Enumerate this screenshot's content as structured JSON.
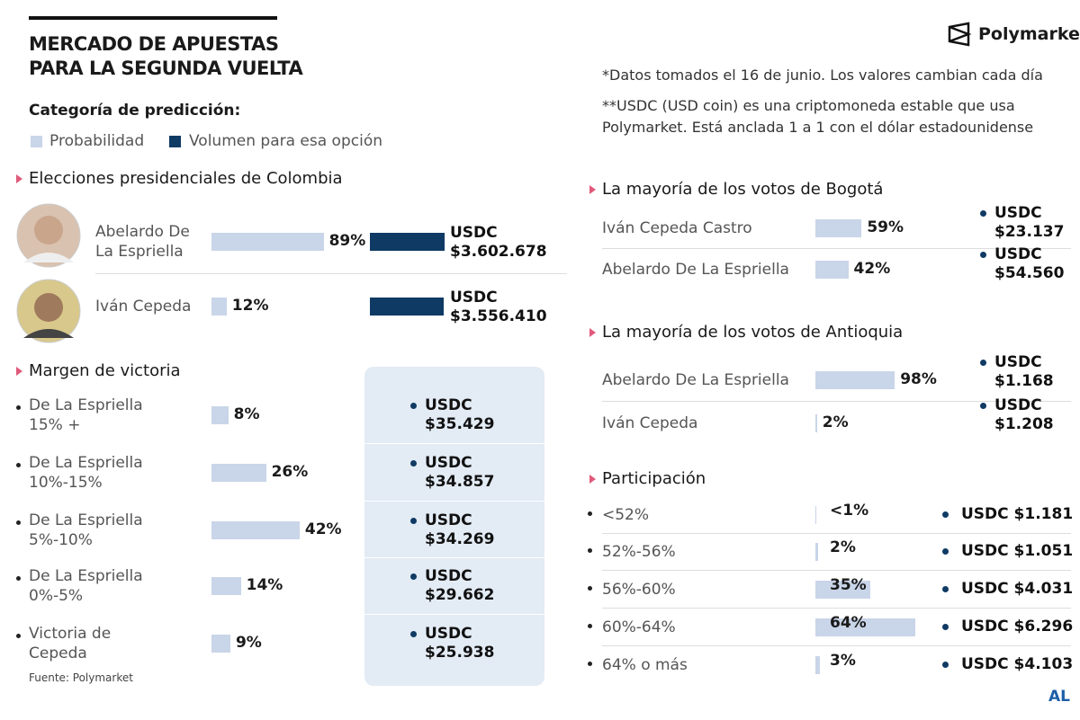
{
  "header": {
    "title": [
      "MERCADO DE APUESTAS",
      "PARA LA SEGUNDA VUELTA"
    ],
    "legend_title": "Categoría de predicción:",
    "legend": [
      "Probabilidad",
      "Volumen para esa opción"
    ],
    "brand": "Polymarket",
    "notes": [
      "*Datos tomados el 16 de junio. Los valores cambian cada día",
      "**USDC (USD coin) es una criptomoneda estable que usa Polymarket. Está anclada 1 a 1 con el dólar estadounidense"
    ]
  },
  "sections": [
    {
      "title": "Elecciones presidenciales de Colombia",
      "items": [
        {
          "name": "Abelardo De La Espriella",
          "probability": 89,
          "probability_label": "89%",
          "volume": 3602678,
          "volume_label": "USDC $3.602.678"
        },
        {
          "name": "Iván Cepeda",
          "probability": 12,
          "probability_label": "12%",
          "volume": 3556410,
          "volume_label": "USDC $3.556.410"
        }
      ]
    },
    {
      "title": "Margen de victoria",
      "items": [
        {
          "name": "De La Espriella 15% +",
          "probability": 8,
          "probability_label": "8%",
          "volume_label": "USDC $35.429"
        },
        {
          "name": "De La Espriella 10%-15%",
          "probability": 26,
          "probability_label": "26%",
          "volume_label": "USDC $34.857"
        },
        {
          "name": "De La Espriella 5%-10%",
          "probability": 42,
          "probability_label": "42%",
          "volume_label": "USDC $34.269"
        },
        {
          "name": "De La Espriella 0%-5%",
          "probability": 14,
          "probability_label": "14%",
          "volume_label": "USDC $29.662"
        },
        {
          "name": "Victoria de Cepeda",
          "probability": 9,
          "probability_label": "9%",
          "volume_label": "USDC $25.938"
        }
      ]
    },
    {
      "title": "La mayoría de los votos de Bogotá",
      "items": [
        {
          "name": "Iván Cepeda Castro",
          "probability": 59,
          "probability_label": "59%",
          "volume_label": "USDC $23.137"
        },
        {
          "name": "Abelardo De La Espriella",
          "probability": 42,
          "probability_label": "42%",
          "volume_label": "USDC $54.560"
        }
      ]
    },
    {
      "title": "La mayoría de los votos de Antioquia",
      "items": [
        {
          "name": "Abelardo De La Espriella",
          "probability": 98,
          "probability_label": "98%",
          "volume_label": "USDC $1.168"
        },
        {
          "name": "Iván Cepeda",
          "probability": 2,
          "probability_label": "2%",
          "volume_label": "USDC $1.208"
        }
      ]
    },
    {
      "title": "Participación",
      "items": [
        {
          "name": "<52%",
          "probability": 0.5,
          "probability_label": "<1%",
          "volume_label": "USDC $1.181"
        },
        {
          "name": "52%-56%",
          "probability": 2,
          "probability_label": "2%",
          "volume_label": "USDC $1.051"
        },
        {
          "name": "56%-60%",
          "probability": 35,
          "probability_label": "35%",
          "volume_label": "USDC $4.031"
        },
        {
          "name": "60%-64%",
          "probability": 64,
          "probability_label": "64%",
          "volume_label": "USDC $6.296"
        },
        {
          "name": "64% o más",
          "probability": 3,
          "probability_label": "3%",
          "volume_label": "USDC $4.103"
        }
      ]
    }
  ],
  "footer": {
    "source": "Fuente: Polymarket",
    "signature": "AL"
  }
}
